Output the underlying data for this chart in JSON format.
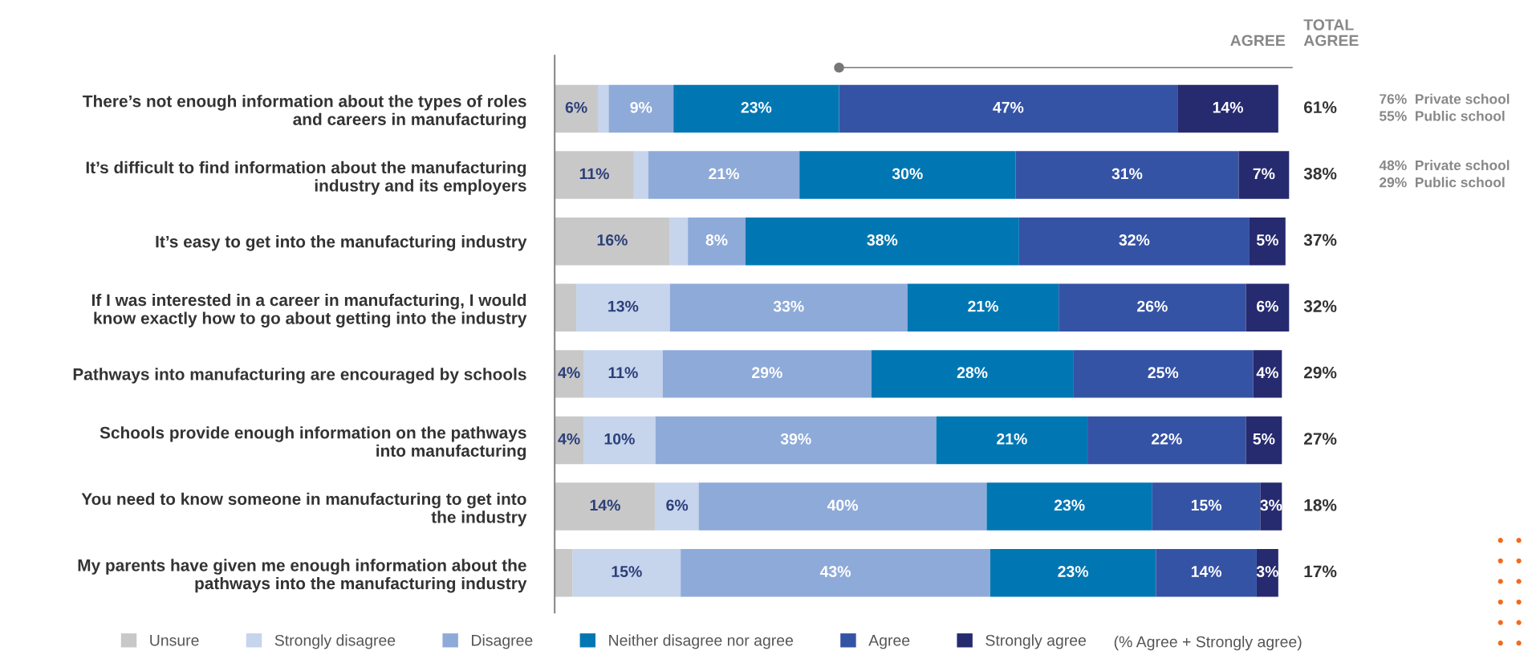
{
  "chart_data": {
    "type": "bar",
    "orientation": "horizontal",
    "stacked": true,
    "categories": [
      "There’s not enough information about the types of roles\nand careers in manufacturing",
      "It’s difficult to find information about the manufacturing\nindustry and its employers",
      "It’s easy to get into the manufacturing industry",
      "If I was interested in a career in manufacturing, I would\nknow exactly how to go about getting into the industry",
      "Pathways into manufacturing are encouraged by schools",
      "Schools provide enough information on the pathways\ninto manufacturing",
      "You need to know someone in manufacturing to get into\nthe industry",
      "My parents have given me enough information about the\npathways into the manufacturing industry"
    ],
    "series": [
      {
        "name": "Unsure",
        "color": "#c8c8c8",
        "values": [
          6,
          11,
          16,
          3,
          4,
          4,
          14,
          2.5
        ],
        "value_labels": [
          "6%",
          "11%",
          "16%",
          null,
          "4%",
          "4%",
          "14%",
          null
        ]
      },
      {
        "name": "Strongly disagree",
        "color": "#c6d4ec",
        "values": [
          1.5,
          2,
          2.5,
          13,
          11,
          10,
          6,
          15
        ],
        "value_labels": [
          null,
          null,
          null,
          "13%",
          "11%",
          "10%",
          "6%",
          "15%"
        ]
      },
      {
        "name": "Disagree",
        "color": "#8eaad8",
        "values": [
          9,
          21,
          8,
          33,
          29,
          39,
          40,
          43
        ],
        "value_labels": [
          "9%",
          "21%",
          "8%",
          "33%",
          "29%",
          "39%",
          "40%",
          "43%"
        ]
      },
      {
        "name": "Neither disagree nor agree",
        "color": "#0077b3",
        "values": [
          23,
          30,
          38,
          21,
          28,
          21,
          23,
          23
        ],
        "value_labels": [
          "23%",
          "30%",
          "38%",
          "21%",
          "28%",
          "21%",
          "23%",
          "23%"
        ]
      },
      {
        "name": "Agree",
        "color": "#3553a5",
        "values": [
          47,
          31,
          32,
          26,
          25,
          22,
          15,
          14
        ],
        "value_labels": [
          "47%",
          "31%",
          "32%",
          "26%",
          "25%",
          "22%",
          "15%",
          "14%"
        ]
      },
      {
        "name": "Strongly agree",
        "color": "#262a6f",
        "values": [
          14,
          7,
          5,
          6,
          4,
          5,
          3,
          3
        ],
        "value_labels": [
          "14%",
          "7%",
          "5%",
          "6%",
          "4%",
          "5%",
          "3%",
          "3%"
        ]
      }
    ],
    "xlim": [
      0,
      102.5
    ],
    "tick_labels": "y",
    "grid": false,
    "legend": "bottom",
    "annotations": [
      "AGREE",
      "TOTAL\nAGREE",
      "(% Agree + Strongly agree)",
      "76%  Private school\n55%  Public school",
      "48%  Private school\n29%  Public school",
      "61%",
      "38%",
      "37%",
      "32%",
      "29%",
      "27%",
      "18%",
      "17%"
    ]
  }
}
